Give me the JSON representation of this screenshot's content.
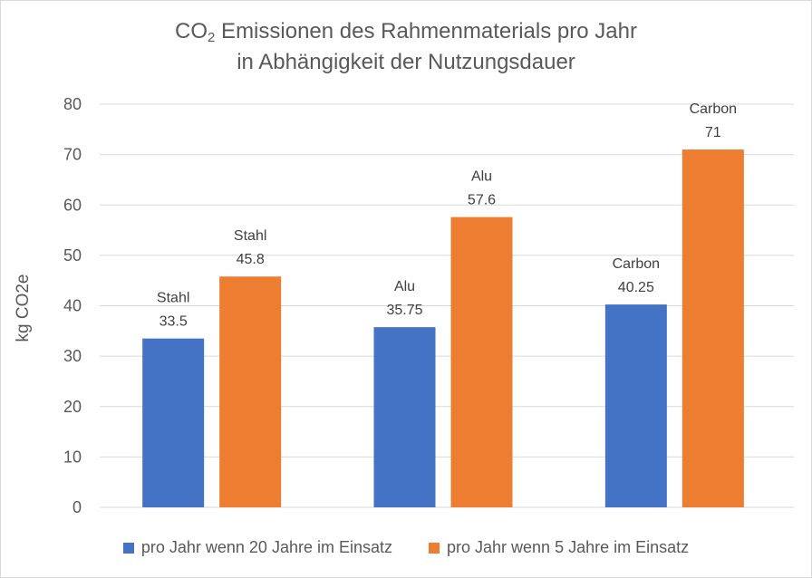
{
  "chart_data": {
    "type": "bar",
    "title_main": "CO",
    "title_sub": "2",
    "title_rest": " Emissionen des Rahmenmaterials pro Jahr",
    "title_line2": "in Abhängigkeit der Nutzungsdauer",
    "xlabel": "",
    "ylabel": "kg CO2e",
    "ylim": [
      0,
      80
    ],
    "yticks": [
      0,
      10,
      20,
      30,
      40,
      50,
      60,
      70,
      80
    ],
    "grid": true,
    "legend_position": "bottom",
    "categories": [
      "Stahl",
      "Alu",
      "Carbon"
    ],
    "series": [
      {
        "name": "pro Jahr wenn 20 Jahre im Einsatz",
        "color": "#4472c4",
        "values": [
          33.5,
          35.75,
          40.25
        ],
        "point_labels": [
          "Stahl",
          "Alu",
          "Carbon"
        ]
      },
      {
        "name": "pro Jahr wenn 5 Jahre im Einsatz",
        "color": "#ed7d31",
        "values": [
          45.8,
          57.6,
          71
        ],
        "point_labels": [
          "Stahl",
          "Alu",
          "Carbon"
        ]
      }
    ]
  }
}
